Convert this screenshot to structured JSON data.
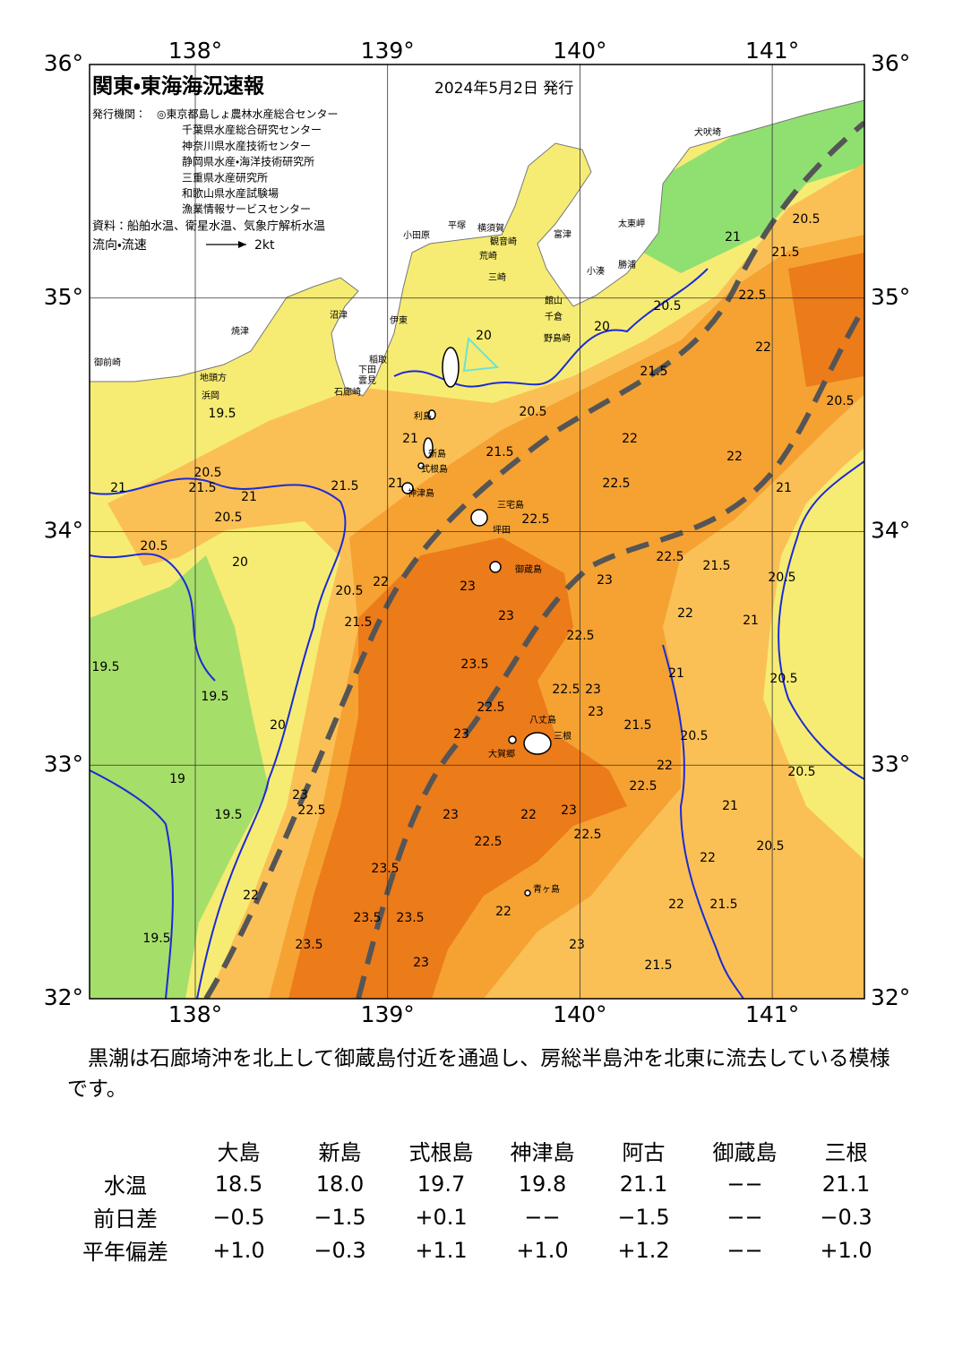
{
  "header": {
    "title": "関東・東海海況速報",
    "date": "2024年5月2日 発行",
    "issuer_label": "発行機関：",
    "issuers": [
      "◎東京都島しょ農林水産総合センター",
      "千葉県水産総合研究センター",
      "神奈川県水産技術センター",
      "静岡県水産・海洋技術研究所",
      "三重県水産研究所",
      "和歌山県水産試験場",
      "漁業情報サービスセンター"
    ],
    "source": "資料：船舶水温、衛星水温、気象庁解析水温",
    "flow_label": "流向・流速",
    "flow_scale": "2kt"
  },
  "map": {
    "lon_ticks": [
      {
        "value": 138,
        "label": "138°"
      },
      {
        "value": 139,
        "label": "139°"
      },
      {
        "value": 140,
        "label": "140°"
      },
      {
        "value": 141,
        "label": "141°"
      }
    ],
    "lat_ticks": [
      {
        "value": 36,
        "label": "36°"
      },
      {
        "value": 35,
        "label": "35°"
      },
      {
        "value": 34,
        "label": "34°"
      },
      {
        "value": 33,
        "label": "33°"
      },
      {
        "value": 32,
        "label": "32°"
      }
    ],
    "places": [
      "犬吠埼",
      "太東岬",
      "勝浦",
      "小湊",
      "富津",
      "館山",
      "千倉",
      "野島崎",
      "平塚",
      "横須賀",
      "観音崎",
      "小田原",
      "荒崎",
      "三崎",
      "沼津",
      "伊東",
      "焼津",
      "御前崎",
      "地頭方",
      "浜岡",
      "稲取",
      "下田",
      "雲見",
      "石廊崎",
      "利島",
      "新島",
      "式根島",
      "神津島",
      "三宅島",
      "坪田",
      "御蔵島",
      "八丈島",
      "三根",
      "大賀郷",
      "青ヶ島"
    ],
    "contour_labels": [
      "21",
      "20.5",
      "21.5",
      "20.5",
      "22.5",
      "22",
      "21.5",
      "20.5",
      "22",
      "22.5",
      "22",
      "21",
      "22.5",
      "21.5",
      "20.5",
      "20",
      "20",
      "21.5",
      "21.5",
      "21",
      "20.5",
      "20.5",
      "21",
      "20.5",
      "20",
      "19.5",
      "21",
      "21",
      "20.5",
      "21.5",
      "22",
      "23",
      "23",
      "22.5",
      "21.5",
      "20.5",
      "22",
      "21",
      "22.5",
      "23",
      "23.5",
      "21",
      "20.5",
      "22.5",
      "22.5",
      "23",
      "23",
      "21.5",
      "20.5",
      "23",
      "22",
      "20.5",
      "22.5",
      "21",
      "23",
      "22",
      "22.5",
      "20.5",
      "23",
      "22.5",
      "22",
      "23",
      "22.5",
      "23.5",
      "23.5",
      "23.5",
      "23.5",
      "23",
      "23",
      "22",
      "22",
      "21.5",
      "21.5",
      "20",
      "19.5",
      "19.5",
      "19",
      "19.5",
      "19.5",
      "22"
    ]
  },
  "summary": "黒潮は石廊埼沖を北上して御蔵島付近を通過し、房総半島沖を北東に流去している模様です。",
  "table": {
    "columns": [
      "大島",
      "新島",
      "式根島",
      "神津島",
      "阿古",
      "御蔵島",
      "三根"
    ],
    "rows": [
      {
        "label": "水温",
        "cells": [
          "18.5",
          "18.0",
          "19.7",
          "19.8",
          "21.1",
          "−−",
          "21.1"
        ]
      },
      {
        "label": "前日差",
        "cells": [
          "−0.5",
          "−1.5",
          "+0.1",
          "−−",
          "−1.5",
          "−−",
          "−0.3"
        ]
      },
      {
        "label": "平年偏差",
        "cells": [
          "+1.0",
          "−0.3",
          "+1.1",
          "+1.0",
          "+1.2",
          "−−",
          "+1.0"
        ]
      }
    ]
  }
}
